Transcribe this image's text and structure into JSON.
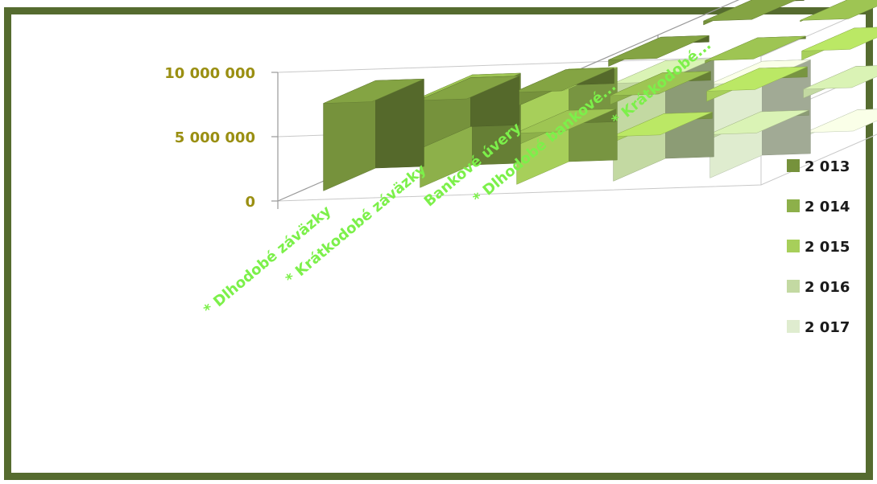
{
  "chart_data": {
    "type": "bar",
    "title": "",
    "categories": [
      "* Dlhodobé záväzky",
      "* Krátkodobé záväzky",
      "Bankové úvery",
      "* Dlhodobé bankové...",
      "* Krátkodobé..."
    ],
    "series": [
      {
        "name": "2 013",
        "color": "#76923c",
        "values": [
          6800000,
          3800000,
          1200000,
          500000,
          300000
        ]
      },
      {
        "name": "2 014",
        "color": "#8db04a",
        "values": [
          7000000,
          1000000,
          700000,
          200000,
          100000
        ]
      },
      {
        "name": "2 015",
        "color": "#a7cf5a",
        "values": [
          7200000,
          500000,
          800000,
          700000,
          200000
        ]
      },
      {
        "name": "2 016",
        "color": "#c3d9a2",
        "values": [
          7600000,
          400000,
          700000,
          600000,
          200000
        ]
      },
      {
        "name": "2 017",
        "color": "#dfeccf",
        "values": [
          7300000,
          300000,
          500000,
          300000,
          200000
        ]
      }
    ],
    "y_ticks": [
      "0",
      "5 000 000",
      "10 000 000"
    ],
    "ylim": [
      0,
      10000000
    ],
    "legend_position": "right",
    "grid": true
  },
  "frame_color": "#556b2f"
}
